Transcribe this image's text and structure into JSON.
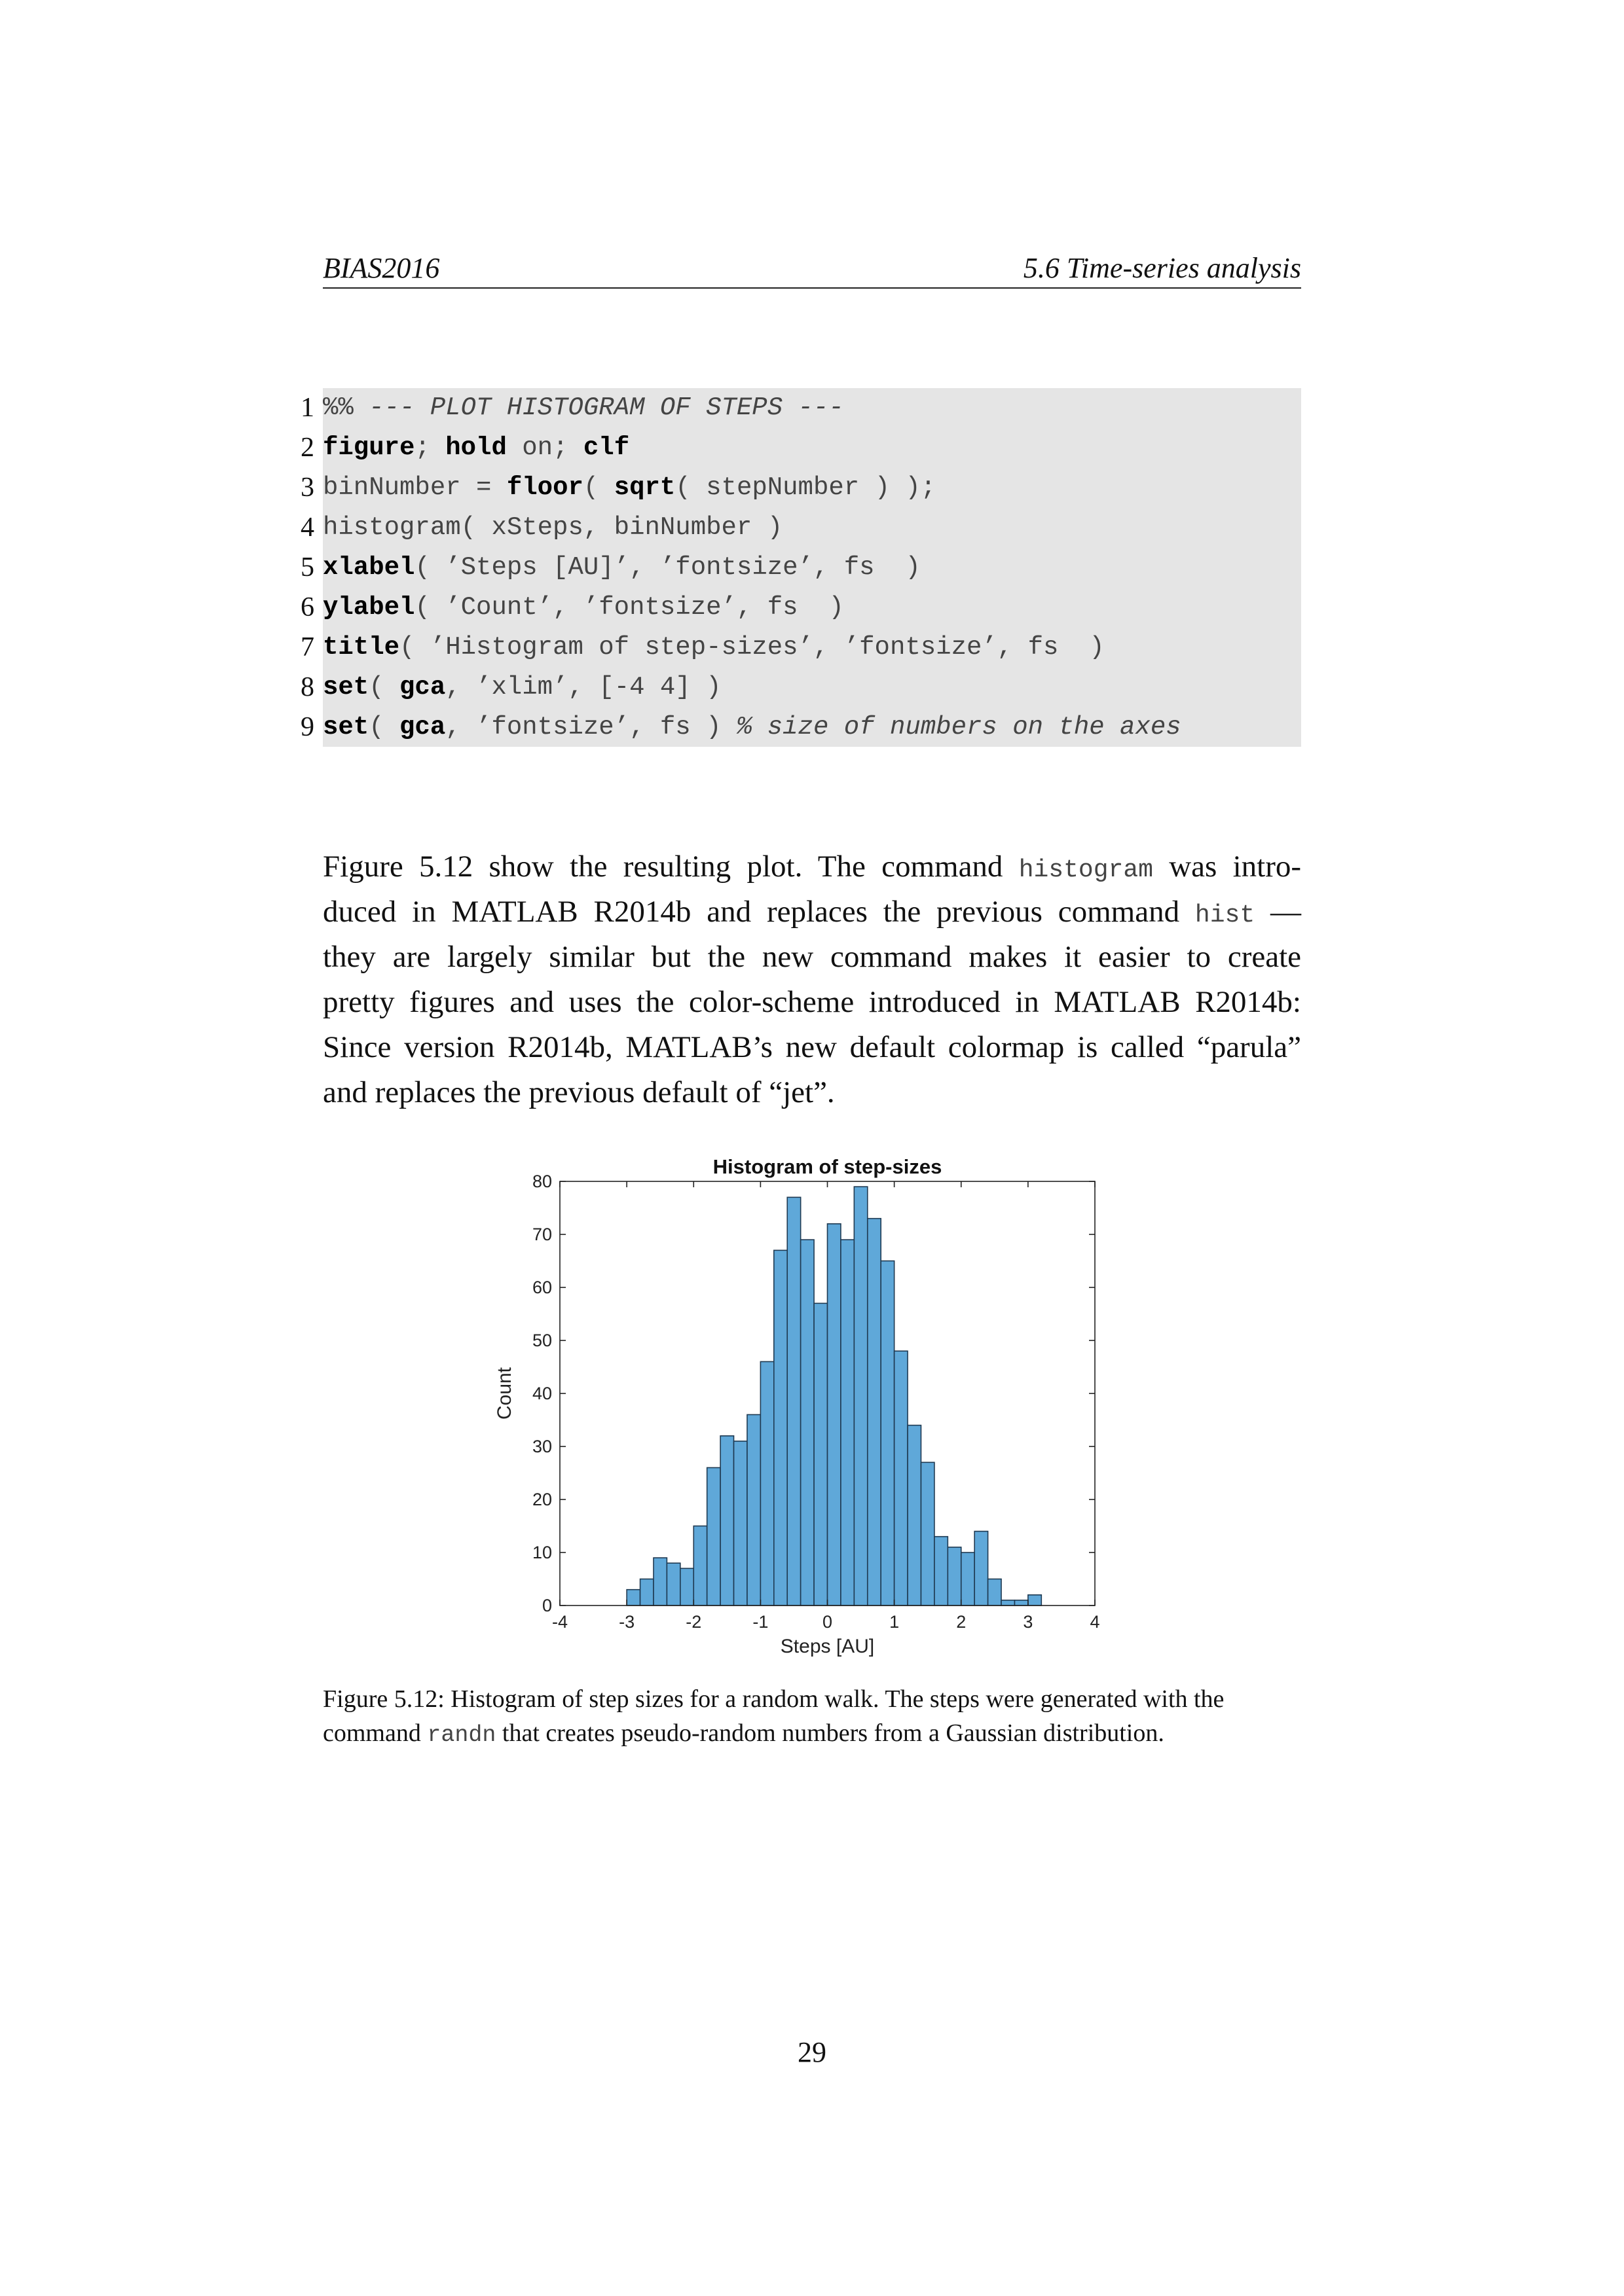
{
  "header": {
    "left": "BIAS2016",
    "right": "5.6 Time-series analysis"
  },
  "code": {
    "lines": [
      {
        "num": "1",
        "parts": [
          {
            "t": "%%",
            "s": "plain"
          },
          {
            "t": " --- PLOT HISTOGRAM OF STEPS ---",
            "s": "comment"
          }
        ]
      },
      {
        "num": "2",
        "parts": [
          {
            "t": "figure",
            "s": "kw"
          },
          {
            "t": "; ",
            "s": "plain"
          },
          {
            "t": "hold",
            "s": "kw"
          },
          {
            "t": " on; ",
            "s": "plain"
          },
          {
            "t": "clf",
            "s": "kw"
          }
        ]
      },
      {
        "num": "3",
        "parts": [
          {
            "t": "binNumber = ",
            "s": "plain"
          },
          {
            "t": "floor",
            "s": "kw"
          },
          {
            "t": "( ",
            "s": "plain"
          },
          {
            "t": "sqrt",
            "s": "kw"
          },
          {
            "t": "( stepNumber ) );",
            "s": "plain"
          }
        ]
      },
      {
        "num": "4",
        "parts": [
          {
            "t": "histogram( xSteps, binNumber )",
            "s": "plain"
          }
        ]
      },
      {
        "num": "5",
        "parts": [
          {
            "t": "xlabel",
            "s": "kw"
          },
          {
            "t": "( ’Steps [AU]’, ’fontsize’, fs  )",
            "s": "plain"
          }
        ]
      },
      {
        "num": "6",
        "parts": [
          {
            "t": "ylabel",
            "s": "kw"
          },
          {
            "t": "( ’Count’, ’fontsize’, fs  )",
            "s": "plain"
          }
        ]
      },
      {
        "num": "7",
        "parts": [
          {
            "t": "title",
            "s": "kw"
          },
          {
            "t": "( ’Histogram of step-sizes’, ’fontsize’, fs  )",
            "s": "plain"
          }
        ]
      },
      {
        "num": "8",
        "parts": [
          {
            "t": "set",
            "s": "kw"
          },
          {
            "t": "( ",
            "s": "plain"
          },
          {
            "t": "gca",
            "s": "kw"
          },
          {
            "t": ", ’xlim’, [-4 4] )",
            "s": "plain"
          }
        ]
      },
      {
        "num": "9",
        "parts": [
          {
            "t": "set",
            "s": "kw"
          },
          {
            "t": "( ",
            "s": "plain"
          },
          {
            "t": "gca",
            "s": "kw"
          },
          {
            "t": ", ’fontsize’, fs ) ",
            "s": "plain"
          },
          {
            "t": "% size of numbers on the axes",
            "s": "comment"
          }
        ]
      }
    ]
  },
  "paragraph": {
    "lines": [
      [
        {
          "t": "Figure 5.12 show the resulting plot.  The command ",
          "s": "plain"
        },
        {
          "t": "histogram",
          "s": "tt"
        },
        {
          "t": " was intro-",
          "s": "plain"
        }
      ],
      [
        {
          "t": "duced in MATLAB R2014b and replaces the previous command ",
          "s": "plain"
        },
        {
          "t": "hist",
          "s": "tt"
        },
        {
          "t": " —",
          "s": "plain"
        }
      ],
      [
        {
          "t": "they are largely similar but the new command makes it easier to create",
          "s": "plain"
        }
      ],
      [
        {
          "t": "pretty figures and uses the color-scheme introduced in MATLAB R2014b:",
          "s": "plain"
        }
      ],
      [
        {
          "t": "Since version R2014b, MATLAB’s new default colormap is called “parula”",
          "s": "plain"
        }
      ],
      [
        {
          "t": "and replaces the previous default of “jet”.",
          "s": "plain"
        }
      ]
    ]
  },
  "chart_data": {
    "type": "bar",
    "title": "Histogram of step-sizes",
    "xlabel": "Steps [AU]",
    "ylabel": "Count",
    "xlim": [
      -4,
      4
    ],
    "ylim": [
      0,
      80
    ],
    "xticks": [
      "-4",
      "-3",
      "-2",
      "-1",
      "0",
      "1",
      "2",
      "3",
      "4"
    ],
    "yticks": [
      "0",
      "10",
      "20",
      "30",
      "40",
      "50",
      "60",
      "70",
      "80"
    ],
    "bin_width": 0.2,
    "bin_edges_start": -3.0,
    "bar_color": "#5fa8d9",
    "edge_color": "#1f3a52",
    "grid": false,
    "series": [
      {
        "values": [
          3,
          5,
          9,
          8,
          7,
          15,
          26,
          32,
          31,
          36,
          46,
          67,
          77,
          69,
          57,
          72,
          69,
          79,
          73,
          65,
          48,
          34,
          27,
          13,
          11,
          10,
          14,
          5,
          1,
          1,
          2
        ]
      }
    ]
  },
  "caption": {
    "lines": [
      [
        {
          "t": "Figure 5.12: Histogram of step sizes for a random walk. The steps were generated with the",
          "s": "plain"
        }
      ],
      [
        {
          "t": "command ",
          "s": "plain"
        },
        {
          "t": "randn",
          "s": "tt"
        },
        {
          "t": " that creates pseudo-random numbers from a Gaussian distribution.",
          "s": "plain"
        }
      ]
    ]
  },
  "page_number": "29"
}
